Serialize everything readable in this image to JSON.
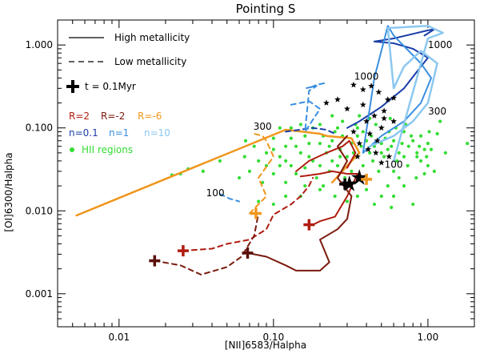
{
  "chart_data": {
    "type": "scatter",
    "title": "Pointing S",
    "xlabel": "[NII]6583/Halpha",
    "ylabel": "[OI]6300/Halpha",
    "xscale": "log",
    "yscale": "log",
    "xlim": [
      0.004,
      2.0
    ],
    "ylim": [
      0.0004,
      2.0
    ],
    "x_ticks": [
      {
        "value": 0.01,
        "label": "0.01"
      },
      {
        "value": 0.1,
        "label": "0.10"
      },
      {
        "value": 1.0,
        "label": "1.00"
      }
    ],
    "y_ticks": [
      {
        "value": 0.001,
        "label": "0.001"
      },
      {
        "value": 0.01,
        "label": "0.010"
      },
      {
        "value": 0.1,
        "label": "0.100"
      },
      {
        "value": 1.0,
        "label": "1.000"
      }
    ],
    "grid": false,
    "legend": {
      "placement": "top-left",
      "line_styles": [
        {
          "label": "High metallicity",
          "dash": "solid"
        },
        {
          "label": "Low metallicity",
          "dash": "dashed"
        }
      ],
      "marker": {
        "label": "t = 0.1Myr"
      },
      "R_entries": [
        {
          "label": "R=2",
          "color": "#b01c10"
        },
        {
          "label": "R=-2",
          "color": "#7a1a0c"
        },
        {
          "label": "R=-6",
          "color": "#f0961e"
        }
      ],
      "n_entries": [
        {
          "label": "n=0.1",
          "color": "#1a3ea8"
        },
        {
          "label": "n=1",
          "color": "#3a8fe0"
        },
        {
          "label": "n=10",
          "color": "#8cc8f0"
        }
      ],
      "points_entry": {
        "label": "HII regions",
        "color": "#33dd33"
      }
    },
    "annotations": [
      {
        "text": "1000",
        "x": 0.4,
        "y": 0.38
      },
      {
        "text": "1000",
        "x": 1.2,
        "y": 0.92
      },
      {
        "text": "300",
        "x": 1.15,
        "y": 0.145
      },
      {
        "text": "300",
        "x": 0.085,
        "y": 0.095
      },
      {
        "text": "100",
        "x": 0.6,
        "y": 0.033
      },
      {
        "text": "100",
        "x": 0.042,
        "y": 0.015
      }
    ],
    "series": [
      {
        "style": "solid",
        "color": "#f0961e",
        "width": 2.5,
        "x": [
          0.0053,
          0.12,
          0.2,
          0.22,
          0.32,
          0.36,
          0.3,
          0.27,
          0.24
        ],
        "y": [
          0.0088,
          0.095,
          0.085,
          0.08,
          0.075,
          0.05,
          0.035,
          0.028,
          0.022
        ]
      },
      {
        "style": "dashed",
        "color": "#f0961e",
        "width": 2,
        "x": [
          0.07,
          0.09,
          0.08,
          0.1,
          0.09,
          0.085,
          0.075
        ],
        "y": [
          0.0093,
          0.015,
          0.025,
          0.045,
          0.07,
          0.08,
          0.085
        ]
      },
      {
        "style": "dashed",
        "color": "#1a3ea8",
        "width": 2,
        "x": [
          0.12,
          0.18,
          0.22,
          0.25
        ],
        "y": [
          0.09,
          0.1,
          0.095,
          0.085
        ]
      },
      {
        "style": "dashed",
        "color": "#3a8fe0",
        "width": 2,
        "x": [
          0.13,
          0.17,
          0.2,
          0.16,
          0.17,
          0.19,
          0.16
        ],
        "y": [
          0.19,
          0.21,
          0.17,
          0.09,
          0.28,
          0.32,
          0.3
        ]
      },
      {
        "style": "dashed",
        "color": "#3a8fe0",
        "width": 2,
        "x": [
          0.045,
          0.052,
          0.06
        ],
        "y": [
          0.016,
          0.014,
          0.013
        ]
      },
      {
        "style": "dashed",
        "color": "#3a8fe0",
        "width": 2,
        "x": [
          0.175,
          0.19,
          0.22
        ],
        "y": [
          0.31,
          0.33,
          0.35
        ]
      },
      {
        "style": "solid",
        "color": "#1a3ea8",
        "width": 2,
        "x": [
          0.3,
          0.36,
          0.5,
          0.7,
          0.9,
          1.0,
          0.8,
          0.6,
          0.45,
          0.6,
          1.0,
          1.1,
          0.95
        ],
        "y": [
          0.1,
          0.12,
          0.18,
          0.3,
          0.55,
          0.7,
          0.9,
          1.05,
          1.1,
          1.2,
          1.5,
          1.55,
          1.3
        ]
      },
      {
        "style": "solid",
        "color": "#3a8fe0",
        "width": 2,
        "x": [
          0.38,
          0.5,
          0.7,
          0.9,
          1.05,
          0.9,
          0.75,
          0.6,
          0.55,
          0.45,
          0.38
        ],
        "y": [
          0.05,
          0.08,
          0.12,
          0.2,
          0.4,
          0.6,
          0.85,
          1.3,
          1.7,
          0.4,
          0.05
        ]
      },
      {
        "style": "solid",
        "color": "#8cc8f0",
        "width": 2.5,
        "x": [
          0.42,
          0.6,
          0.8,
          1.0,
          1.15,
          0.9,
          0.7,
          0.6,
          0.55,
          1.0,
          1.25,
          1.0,
          0.6
        ],
        "y": [
          0.06,
          0.08,
          0.12,
          0.2,
          0.6,
          0.85,
          0.55,
          0.3,
          1.6,
          1.7,
          1.4,
          1.2,
          0.04
        ]
      },
      {
        "style": "solid",
        "color": "#b01c10",
        "width": 2,
        "x": [
          0.15,
          0.2,
          0.24,
          0.3,
          0.35,
          0.3,
          0.25,
          0.2,
          0.18
        ],
        "y": [
          0.026,
          0.028,
          0.03,
          0.028,
          0.028,
          0.015,
          0.0085,
          0.0075,
          0.0068
        ]
      },
      {
        "style": "solid",
        "color": "#b01c10",
        "width": 2,
        "x": [
          0.14,
          0.17,
          0.22,
          0.28,
          0.31,
          0.34,
          0.3
        ],
        "y": [
          0.03,
          0.04,
          0.05,
          0.06,
          0.07,
          0.05,
          0.033
        ]
      },
      {
        "style": "solid",
        "color": "#7a1a0c",
        "width": 2,
        "x": [
          0.068,
          0.09,
          0.12,
          0.14,
          0.16,
          0.2,
          0.23,
          0.2,
          0.26,
          0.3,
          0.32,
          0.26,
          0.3,
          0.26,
          0.3
        ],
        "y": [
          0.0031,
          0.0028,
          0.0022,
          0.0019,
          0.0019,
          0.0019,
          0.0024,
          0.0045,
          0.006,
          0.008,
          0.015,
          0.025,
          0.04,
          0.06,
          0.08
        ]
      },
      {
        "style": "dashed",
        "color": "#b01c10",
        "width": 2,
        "x": [
          0.026,
          0.04,
          0.05,
          0.07,
          0.09,
          0.1,
          0.13,
          0.15,
          0.17,
          0.18
        ],
        "y": [
          0.0033,
          0.0035,
          0.004,
          0.0045,
          0.006,
          0.009,
          0.012,
          0.015,
          0.02,
          0.025
        ]
      },
      {
        "style": "dashed",
        "color": "#7a1a0c",
        "width": 2,
        "x": [
          0.017,
          0.025,
          0.034,
          0.05,
          0.062,
          0.075,
          0.08
        ],
        "y": [
          0.0025,
          0.0022,
          0.0017,
          0.0021,
          0.0028,
          0.005,
          0.0093
        ]
      }
    ],
    "plus_markers": [
      {
        "x": 0.017,
        "y": 0.0025,
        "color": "#5a0f08"
      },
      {
        "x": 0.026,
        "y": 0.0033,
        "color": "#b01c10"
      },
      {
        "x": 0.068,
        "y": 0.0031,
        "color": "#5a0f08"
      },
      {
        "x": 0.077,
        "y": 0.0093,
        "color": "#f0961e"
      },
      {
        "x": 0.17,
        "y": 0.0068,
        "color": "#b01c10"
      },
      {
        "x": 0.29,
        "y": 0.021,
        "color": "#000000"
      },
      {
        "x": 0.4,
        "y": 0.024,
        "color": "#f0961e"
      }
    ],
    "big_stars": [
      {
        "x": 0.31,
        "y": 0.021
      },
      {
        "x": 0.36,
        "y": 0.025
      }
    ],
    "small_stars": [
      {
        "x": 0.22,
        "y": 0.2
      },
      {
        "x": 0.26,
        "y": 0.22
      },
      {
        "x": 0.3,
        "y": 0.17
      },
      {
        "x": 0.33,
        "y": 0.33
      },
      {
        "x": 0.38,
        "y": 0.29
      },
      {
        "x": 0.43,
        "y": 0.32
      },
      {
        "x": 0.48,
        "y": 0.27
      },
      {
        "x": 0.55,
        "y": 0.22
      },
      {
        "x": 0.6,
        "y": 0.23
      },
      {
        "x": 0.38,
        "y": 0.19
      },
      {
        "x": 0.45,
        "y": 0.14
      },
      {
        "x": 0.52,
        "y": 0.16
      },
      {
        "x": 0.4,
        "y": 0.12
      },
      {
        "x": 0.5,
        "y": 0.1
      },
      {
        "x": 0.6,
        "y": 0.12
      },
      {
        "x": 0.33,
        "y": 0.09
      },
      {
        "x": 0.42,
        "y": 0.085
      },
      {
        "x": 0.47,
        "y": 0.07
      },
      {
        "x": 0.36,
        "y": 0.065
      },
      {
        "x": 0.41,
        "y": 0.055
      },
      {
        "x": 0.46,
        "y": 0.05
      },
      {
        "x": 0.35,
        "y": 0.045
      },
      {
        "x": 0.5,
        "y": 0.038
      },
      {
        "x": 0.52,
        "y": 0.13
      },
      {
        "x": 0.56,
        "y": 0.045
      }
    ],
    "hii_points": [
      {
        "x": 0.2,
        "y": 0.065
      },
      {
        "x": 0.18,
        "y": 0.04
      },
      {
        "x": 0.25,
        "y": 0.09
      },
      {
        "x": 0.22,
        "y": 0.05
      },
      {
        "x": 0.15,
        "y": 0.05
      },
      {
        "x": 0.28,
        "y": 0.12
      },
      {
        "x": 0.16,
        "y": 0.08
      },
      {
        "x": 0.3,
        "y": 0.045
      },
      {
        "x": 0.19,
        "y": 0.025
      },
      {
        "x": 0.23,
        "y": 0.03
      },
      {
        "x": 0.26,
        "y": 0.035
      },
      {
        "x": 0.13,
        "y": 0.035
      },
      {
        "x": 0.11,
        "y": 0.045
      },
      {
        "x": 0.1,
        "y": 0.055
      },
      {
        "x": 0.12,
        "y": 0.06
      },
      {
        "x": 0.17,
        "y": 0.065
      },
      {
        "x": 0.21,
        "y": 0.08
      },
      {
        "x": 0.24,
        "y": 0.07
      },
      {
        "x": 0.27,
        "y": 0.055
      },
      {
        "x": 0.32,
        "y": 0.065
      },
      {
        "x": 0.35,
        "y": 0.08
      },
      {
        "x": 0.38,
        "y": 0.09
      },
      {
        "x": 0.4,
        "y": 0.07
      },
      {
        "x": 0.45,
        "y": 0.06
      },
      {
        "x": 0.5,
        "y": 0.065
      },
      {
        "x": 0.55,
        "y": 0.055
      },
      {
        "x": 0.6,
        "y": 0.07
      },
      {
        "x": 0.65,
        "y": 0.05
      },
      {
        "x": 0.7,
        "y": 0.045
      },
      {
        "x": 0.75,
        "y": 0.06
      },
      {
        "x": 0.8,
        "y": 0.07
      },
      {
        "x": 0.85,
        "y": 0.05
      },
      {
        "x": 0.9,
        "y": 0.04
      },
      {
        "x": 0.95,
        "y": 0.055
      },
      {
        "x": 1.0,
        "y": 0.065
      },
      {
        "x": 1.1,
        "y": 0.03
      },
      {
        "x": 1.3,
        "y": 0.05
      },
      {
        "x": 1.8,
        "y": 0.065
      },
      {
        "x": 1.15,
        "y": 0.085
      },
      {
        "x": 1.2,
        "y": 0.12
      },
      {
        "x": 0.6,
        "y": 0.03
      },
      {
        "x": 0.65,
        "y": 0.025
      },
      {
        "x": 0.55,
        "y": 0.02
      },
      {
        "x": 0.5,
        "y": 0.015
      },
      {
        "x": 0.45,
        "y": 0.012
      },
      {
        "x": 0.58,
        "y": 0.011
      },
      {
        "x": 0.8,
        "y": 0.012
      },
      {
        "x": 0.85,
        "y": 0.045
      },
      {
        "x": 1.0,
        "y": 0.035
      },
      {
        "x": 0.95,
        "y": 0.028
      },
      {
        "x": 0.7,
        "y": 0.02
      },
      {
        "x": 0.4,
        "y": 0.018
      },
      {
        "x": 0.35,
        "y": 0.015
      },
      {
        "x": 0.3,
        "y": 0.013
      },
      {
        "x": 0.25,
        "y": 0.015
      },
      {
        "x": 0.2,
        "y": 0.018
      },
      {
        "x": 0.16,
        "y": 0.02
      },
      {
        "x": 0.12,
        "y": 0.022
      },
      {
        "x": 0.1,
        "y": 0.028
      },
      {
        "x": 0.09,
        "y": 0.035
      },
      {
        "x": 0.085,
        "y": 0.022
      },
      {
        "x": 0.07,
        "y": 0.03
      },
      {
        "x": 0.065,
        "y": 0.045
      },
      {
        "x": 0.06,
        "y": 0.025
      },
      {
        "x": 0.045,
        "y": 0.04
      },
      {
        "x": 0.035,
        "y": 0.03
      },
      {
        "x": 0.025,
        "y": 0.028
      },
      {
        "x": 0.022,
        "y": 0.027
      },
      {
        "x": 0.028,
        "y": 0.032
      },
      {
        "x": 0.08,
        "y": 0.013
      },
      {
        "x": 0.1,
        "y": 0.012
      },
      {
        "x": 0.12,
        "y": 0.015
      },
      {
        "x": 0.14,
        "y": 0.06
      },
      {
        "x": 0.11,
        "y": 0.1
      },
      {
        "x": 0.13,
        "y": 0.1
      },
      {
        "x": 0.15,
        "y": 0.11
      },
      {
        "x": 0.18,
        "y": 0.1
      },
      {
        "x": 0.2,
        "y": 0.11
      },
      {
        "x": 0.24,
        "y": 0.14
      },
      {
        "x": 0.26,
        "y": 0.1
      },
      {
        "x": 0.34,
        "y": 0.11
      },
      {
        "x": 0.36,
        "y": 0.14
      },
      {
        "x": 0.42,
        "y": 0.13
      },
      {
        "x": 0.46,
        "y": 0.11
      },
      {
        "x": 0.56,
        "y": 0.09
      },
      {
        "x": 0.62,
        "y": 0.1
      },
      {
        "x": 0.7,
        "y": 0.09
      },
      {
        "x": 0.78,
        "y": 0.08
      },
      {
        "x": 0.44,
        "y": 0.04
      },
      {
        "x": 0.52,
        "y": 0.045
      },
      {
        "x": 0.48,
        "y": 0.03
      },
      {
        "x": 0.38,
        "y": 0.035
      },
      {
        "x": 0.32,
        "y": 0.03
      },
      {
        "x": 0.29,
        "y": 0.025
      },
      {
        "x": 0.17,
        "y": 0.045
      },
      {
        "x": 0.14,
        "y": 0.028
      },
      {
        "x": 0.09,
        "y": 0.05
      },
      {
        "x": 0.075,
        "y": 0.06
      },
      {
        "x": 0.066,
        "y": 0.07
      },
      {
        "x": 0.1,
        "y": 0.075
      },
      {
        "x": 0.13,
        "y": 0.075
      },
      {
        "x": 0.23,
        "y": 0.06
      },
      {
        "x": 0.28,
        "y": 0.08
      },
      {
        "x": 0.33,
        "y": 0.05
      },
      {
        "x": 0.37,
        "y": 0.06
      },
      {
        "x": 0.43,
        "y": 0.08
      },
      {
        "x": 0.53,
        "y": 0.075
      },
      {
        "x": 0.58,
        "y": 0.06
      },
      {
        "x": 0.68,
        "y": 0.065
      },
      {
        "x": 0.74,
        "y": 0.035
      },
      {
        "x": 0.63,
        "y": 0.04
      },
      {
        "x": 0.88,
        "y": 0.06
      },
      {
        "x": 0.98,
        "y": 0.045
      },
      {
        "x": 1.05,
        "y": 0.055
      },
      {
        "x": 0.84,
        "y": 0.025
      },
      {
        "x": 0.6,
        "y": 0.015
      },
      {
        "x": 0.2,
        "y": 0.035
      },
      {
        "x": 0.24,
        "y": 0.04
      },
      {
        "x": 0.11,
        "y": 0.035
      },
      {
        "x": 0.08,
        "y": 0.04
      },
      {
        "x": 0.16,
        "y": 0.033
      },
      {
        "x": 0.27,
        "y": 0.045
      },
      {
        "x": 0.21,
        "y": 0.02
      },
      {
        "x": 0.15,
        "y": 0.015
      },
      {
        "x": 0.12,
        "y": 0.04
      },
      {
        "x": 0.35,
        "y": 0.1
      },
      {
        "x": 0.5,
        "y": 0.05
      },
      {
        "x": 0.42,
        "y": 0.05
      },
      {
        "x": 0.9,
        "y": 0.08
      },
      {
        "x": 1.02,
        "y": 0.09
      },
      {
        "x": 0.72,
        "y": 0.11
      },
      {
        "x": 0.57,
        "y": 0.13
      }
    ]
  }
}
